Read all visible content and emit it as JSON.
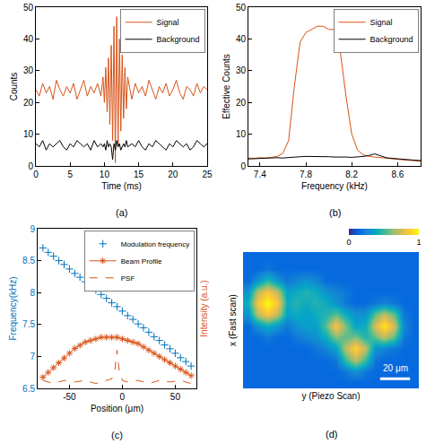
{
  "chart_data": [
    {
      "type": "line",
      "label": "(a)",
      "xlabel": "Time (ms)",
      "ylabel": "Counts",
      "xlim": [
        0,
        25
      ],
      "xticks": [
        0,
        5,
        10,
        15,
        20,
        25
      ],
      "ylim": [
        0,
        50
      ],
      "yticks": [
        0,
        10,
        20,
        30,
        40,
        50
      ],
      "grid": false,
      "legend": "top right",
      "x": [
        0,
        0.5,
        1,
        1.5,
        2,
        2.5,
        3,
        3.5,
        4,
        4.5,
        5,
        5.5,
        6,
        6.5,
        7,
        7.5,
        8,
        8.5,
        9,
        9.5,
        9.8,
        10,
        10.2,
        10.4,
        10.6,
        10.8,
        11,
        11.2,
        11.4,
        11.6,
        11.8,
        12,
        12.2,
        12.4,
        12.6,
        12.8,
        13,
        13.2,
        13.4,
        14,
        14.5,
        15,
        15.5,
        16,
        16.5,
        17,
        17.5,
        18,
        18.5,
        19,
        19.5,
        20,
        20.5,
        21,
        21.5,
        22,
        22.5,
        23,
        23.5,
        24,
        24.5,
        25
      ],
      "series": [
        {
          "name": "Signal",
          "color": "#d95319",
          "line_style": "solid",
          "values": [
            24,
            22,
            26,
            23,
            25,
            21,
            27,
            24,
            22,
            25,
            23,
            26,
            21,
            24,
            27,
            22,
            25,
            23,
            26,
            22,
            28,
            20,
            31,
            17,
            34,
            13,
            38,
            8,
            44,
            1,
            47,
            6,
            40,
            11,
            35,
            15,
            31,
            18,
            28,
            21,
            26,
            23,
            25,
            22,
            27,
            24,
            21,
            25,
            23,
            26,
            22,
            24,
            27,
            23,
            21,
            25,
            24,
            22,
            26,
            23,
            25,
            24
          ]
        },
        {
          "name": "Background",
          "color": "#000000",
          "line_style": "solid",
          "values": [
            7,
            6,
            8,
            5,
            7,
            6,
            7,
            8,
            6,
            5,
            7,
            6,
            8,
            7,
            6,
            7,
            5,
            8,
            6,
            7,
            6,
            7,
            5,
            8,
            6,
            7,
            6,
            2,
            7,
            5,
            8,
            6,
            7,
            5,
            6,
            7,
            6,
            8,
            6,
            7,
            6,
            8,
            6,
            5,
            7,
            6,
            8,
            7,
            6,
            5,
            7,
            6,
            8,
            7,
            6,
            7,
            5,
            6,
            8,
            7,
            6,
            7
          ]
        }
      ]
    },
    {
      "type": "line",
      "label": "(b)",
      "xlabel": "Frequency (kHz)",
      "ylabel": "Effective Counts",
      "xlim": [
        7.3,
        8.8
      ],
      "xticks": [
        7.4,
        7.8,
        8.2,
        8.6
      ],
      "ylim": [
        0,
        50
      ],
      "yticks": [
        0,
        10,
        20,
        30,
        40,
        50
      ],
      "grid": false,
      "legend": "top right",
      "x": [
        7.3,
        7.35,
        7.4,
        7.45,
        7.5,
        7.55,
        7.6,
        7.65,
        7.7,
        7.75,
        7.8,
        7.85,
        7.9,
        7.95,
        8,
        8.05,
        8.1,
        8.15,
        8.2,
        8.25,
        8.3,
        8.35,
        8.4,
        8.45,
        8.5,
        8.55,
        8.6,
        8.65,
        8.7,
        8.75,
        8.8
      ],
      "series": [
        {
          "name": "Signal",
          "color": "#d95319",
          "line_style": "solid",
          "values": [
            2.5,
            2.4,
            2.6,
            2.5,
            2.7,
            3,
            4,
            8,
            25,
            39,
            42,
            43,
            44,
            44,
            43,
            43,
            36,
            22,
            10,
            5,
            3.5,
            3,
            2.8,
            2.5,
            2.4,
            2.2,
            2,
            1.9,
            1.8,
            1.6,
            1.5
          ]
        },
        {
          "name": "Background",
          "color": "#000000",
          "line_style": "solid",
          "values": [
            2.2,
            2.3,
            2.4,
            2.3,
            2.5,
            2.6,
            2.5,
            2.7,
            2.8,
            2.9,
            3,
            3,
            3.1,
            3,
            2.9,
            2.8,
            2.9,
            2.8,
            2.7,
            2.8,
            3,
            3.3,
            3.8,
            3.2,
            2.6,
            2.4,
            2.2,
            2,
            1.9,
            1.8,
            1.7
          ]
        }
      ]
    },
    {
      "type": "line",
      "label": "(c)",
      "xlabel": "Position (μm)",
      "ylabel": "Frequency(kHz)",
      "y2label": "Intensity (a.u.)",
      "xlim": [
        -80,
        70
      ],
      "xticks": [
        -50,
        0,
        50
      ],
      "ylim": [
        6.5,
        9
      ],
      "yticks": [
        6.5,
        7,
        7.5,
        8,
        8.5,
        9
      ],
      "y2lim": [
        0,
        1
      ],
      "y2ticks": [],
      "grid": false,
      "legend": "top right",
      "series": [
        {
          "name": "Modulation frequency",
          "color": "#0072bd",
          "marker": "plus",
          "x": [
            -75,
            -70,
            -65,
            -60,
            -55,
            -50,
            -45,
            -40,
            -35,
            -30,
            -25,
            -20,
            -15,
            -10,
            -5,
            0,
            5,
            10,
            15,
            20,
            25,
            30,
            35,
            40,
            45,
            50,
            55,
            60,
            65
          ],
          "values": [
            8.7,
            8.63,
            8.57,
            8.5,
            8.44,
            8.37,
            8.3,
            8.24,
            8.17,
            8.11,
            8.04,
            7.97,
            7.91,
            7.84,
            7.78,
            7.71,
            7.64,
            7.58,
            7.51,
            7.45,
            7.38,
            7.31,
            7.25,
            7.18,
            7.12,
            7.05,
            6.98,
            6.92,
            6.85
          ]
        },
        {
          "name": "Beam Profile",
          "color": "#d95319",
          "marker": "asterisk",
          "line_style": "solid",
          "axis": "y2",
          "x": [
            -75,
            -70,
            -65,
            -60,
            -55,
            -50,
            -45,
            -40,
            -35,
            -30,
            -25,
            -20,
            -15,
            -10,
            -5,
            0,
            5,
            10,
            15,
            20,
            25,
            30,
            35,
            40,
            45,
            50,
            55,
            60,
            65
          ],
          "values": [
            0.07,
            0.1,
            0.13,
            0.16,
            0.19,
            0.22,
            0.25,
            0.27,
            0.29,
            0.3,
            0.31,
            0.32,
            0.32,
            0.32,
            0.32,
            0.31,
            0.3,
            0.29,
            0.28,
            0.26,
            0.24,
            0.22,
            0.2,
            0.18,
            0.16,
            0.14,
            0.12,
            0.1,
            0.08
          ]
        },
        {
          "name": "PSF",
          "color": "#d95319",
          "line_style": "dashed",
          "axis": "y2",
          "x": [
            -75,
            -65,
            -55,
            -45,
            -35,
            -25,
            -15,
            -10,
            -7,
            -5,
            -3,
            0,
            5,
            15,
            25,
            35,
            45,
            55,
            65
          ],
          "values": [
            0.05,
            0.03,
            0.05,
            0.04,
            0.05,
            0.03,
            0.05,
            0.06,
            0.12,
            0.24,
            0.11,
            0.05,
            0.04,
            0.05,
            0.03,
            0.05,
            0.04,
            0.05,
            0.03
          ]
        }
      ]
    },
    {
      "type": "heatmap",
      "label": "(d)",
      "xlabel": "y (Piezo Scan)",
      "ylabel": "x (Fast scan)",
      "tick_labels": false,
      "scale_bar": "20 μm",
      "clim": [
        0,
        1
      ],
      "cticks": [
        0,
        1
      ],
      "z": [
        [
          0.15,
          0.15,
          0.15,
          0.15,
          0.15,
          0.15,
          0.15,
          0.15,
          0.15,
          0.15,
          0.15,
          0.15,
          0.15,
          0.15,
          0.15,
          0.15,
          0.15,
          0.15
        ],
        [
          0.15,
          0.15,
          0.2,
          0.15,
          0.15,
          0.15,
          0.15,
          0.15,
          0.15,
          0.15,
          0.15,
          0.15,
          0.15,
          0.15,
          0.15,
          0.15,
          0.15,
          0.15
        ],
        [
          0.15,
          0.3,
          0.45,
          0.3,
          0.2,
          0.25,
          0.3,
          0.25,
          0.15,
          0.15,
          0.15,
          0.15,
          0.15,
          0.15,
          0.15,
          0.15,
          0.15,
          0.15
        ],
        [
          0.3,
          0.7,
          0.85,
          0.7,
          0.35,
          0.4,
          0.45,
          0.4,
          0.3,
          0.25,
          0.2,
          0.15,
          0.15,
          0.15,
          0.15,
          0.15,
          0.15,
          0.15
        ],
        [
          0.4,
          0.85,
          1,
          0.85,
          0.4,
          0.45,
          0.4,
          0.45,
          0.4,
          0.3,
          0.2,
          0.15,
          0.15,
          0.2,
          0.25,
          0.2,
          0.15,
          0.15
        ],
        [
          0.3,
          0.7,
          0.85,
          0.7,
          0.35,
          0.4,
          0.35,
          0.4,
          0.45,
          0.55,
          0.4,
          0.3,
          0.3,
          0.55,
          0.7,
          0.55,
          0.2,
          0.15
        ],
        [
          0.15,
          0.3,
          0.4,
          0.3,
          0.2,
          0.3,
          0.35,
          0.35,
          0.55,
          0.85,
          0.6,
          0.35,
          0.4,
          0.75,
          0.95,
          0.75,
          0.25,
          0.15
        ],
        [
          0.15,
          0.15,
          0.2,
          0.15,
          0.15,
          0.2,
          0.25,
          0.3,
          0.4,
          0.6,
          0.55,
          0.6,
          0.45,
          0.55,
          0.7,
          0.55,
          0.2,
          0.15
        ],
        [
          0.15,
          0.15,
          0.15,
          0.15,
          0.15,
          0.15,
          0.15,
          0.2,
          0.25,
          0.35,
          0.7,
          0.9,
          0.7,
          0.3,
          0.25,
          0.2,
          0.15,
          0.15
        ],
        [
          0.15,
          0.15,
          0.15,
          0.15,
          0.15,
          0.15,
          0.15,
          0.15,
          0.15,
          0.2,
          0.5,
          0.7,
          0.5,
          0.2,
          0.15,
          0.15,
          0.15,
          0.15
        ],
        [
          0.15,
          0.15,
          0.15,
          0.15,
          0.15,
          0.15,
          0.15,
          0.15,
          0.15,
          0.15,
          0.2,
          0.3,
          0.2,
          0.15,
          0.15,
          0.15,
          0.15,
          0.15
        ],
        [
          0.15,
          0.15,
          0.15,
          0.15,
          0.15,
          0.15,
          0.15,
          0.15,
          0.15,
          0.15,
          0.15,
          0.15,
          0.15,
          0.15,
          0.15,
          0.15,
          0.15,
          0.15
        ]
      ]
    }
  ]
}
